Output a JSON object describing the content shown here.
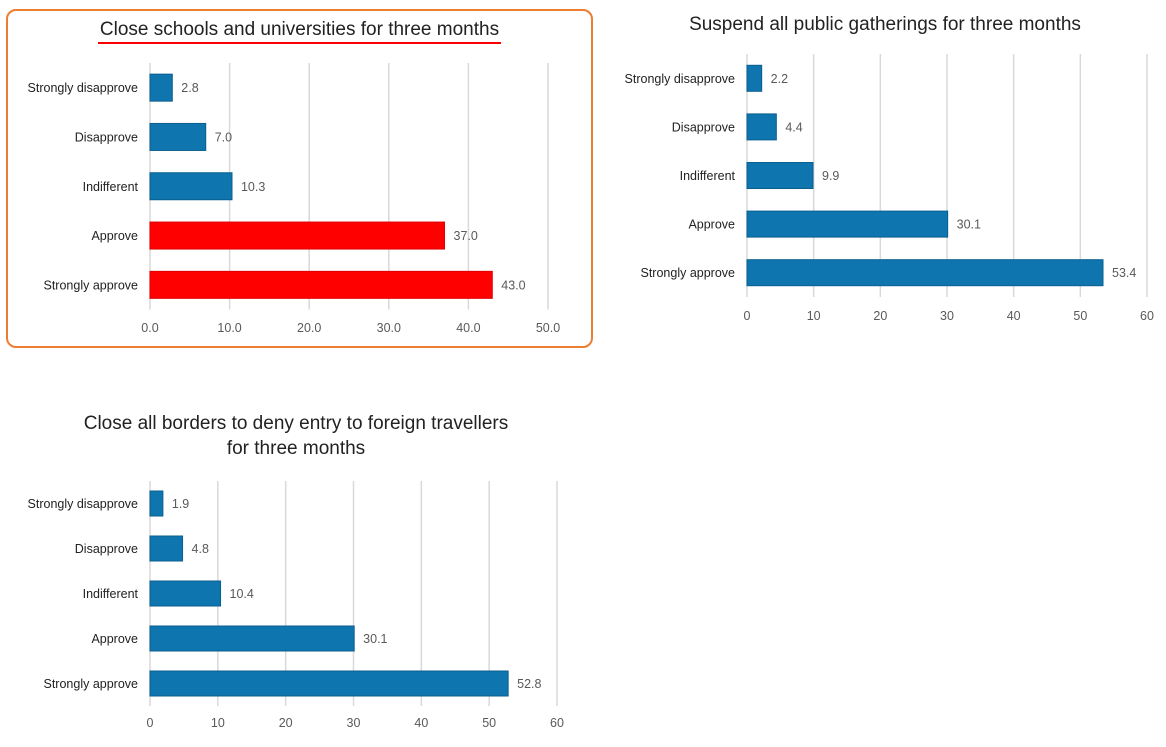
{
  "chart_data": [
    {
      "type": "bar",
      "orientation": "horizontal",
      "title": "Close schools and universities  for three months",
      "title_underlined": true,
      "highlighted": true,
      "categories": [
        "Strongly disapprove",
        "Disapprove",
        "Indifferent",
        "Approve",
        "Strongly approve"
      ],
      "values": [
        2.8,
        7.0,
        10.3,
        37.0,
        43.0
      ],
      "value_labels": [
        "2.8",
        "7.0",
        "10.3",
        "37.0",
        "43.0"
      ],
      "bar_colors": [
        "#0F75AE",
        "#0F75AE",
        "#0F75AE",
        "#FF0000",
        "#FF0000"
      ],
      "xlim": [
        0,
        50
      ],
      "xticks": [
        "0.0",
        "10.0",
        "20.0",
        "30.0",
        "40.0",
        "50.0"
      ],
      "grid": true,
      "xlabel": "",
      "ylabel": ""
    },
    {
      "type": "bar",
      "orientation": "horizontal",
      "title": "Suspend all public gatherings  for three months",
      "title_underlined": false,
      "highlighted": false,
      "categories": [
        "Strongly disapprove",
        "Disapprove",
        "Indifferent",
        "Approve",
        "Strongly approve"
      ],
      "values": [
        2.2,
        4.4,
        9.9,
        30.1,
        53.4
      ],
      "value_labels": [
        "2.2",
        "4.4",
        "9.9",
        "30.1",
        "53.4"
      ],
      "bar_colors": [
        "#0F75AE",
        "#0F75AE",
        "#0F75AE",
        "#0F75AE",
        "#0F75AE"
      ],
      "xlim": [
        0,
        60
      ],
      "xticks": [
        "0",
        "10",
        "20",
        "30",
        "40",
        "50",
        "60"
      ],
      "grid": true,
      "xlabel": "",
      "ylabel": ""
    },
    {
      "type": "bar",
      "orientation": "horizontal",
      "title": "Close all borders to deny entry to foreign travellers for three months",
      "title_lines": [
        "Close all borders to deny entry to foreign travellers",
        "for three months"
      ],
      "title_underlined": false,
      "highlighted": false,
      "categories": [
        "Strongly disapprove",
        "Disapprove",
        "Indifferent",
        "Approve",
        "Strongly approve"
      ],
      "values": [
        1.9,
        4.8,
        10.4,
        30.1,
        52.8
      ],
      "value_labels": [
        "1.9",
        "4.8",
        "10.4",
        "30.1",
        "52.8"
      ],
      "bar_colors": [
        "#0F75AE",
        "#0F75AE",
        "#0F75AE",
        "#0F75AE",
        "#0F75AE"
      ],
      "xlim": [
        0,
        60
      ],
      "xticks": [
        "0",
        "10",
        "20",
        "30",
        "40",
        "50",
        "60"
      ],
      "grid": true,
      "xlabel": "",
      "ylabel": ""
    }
  ]
}
